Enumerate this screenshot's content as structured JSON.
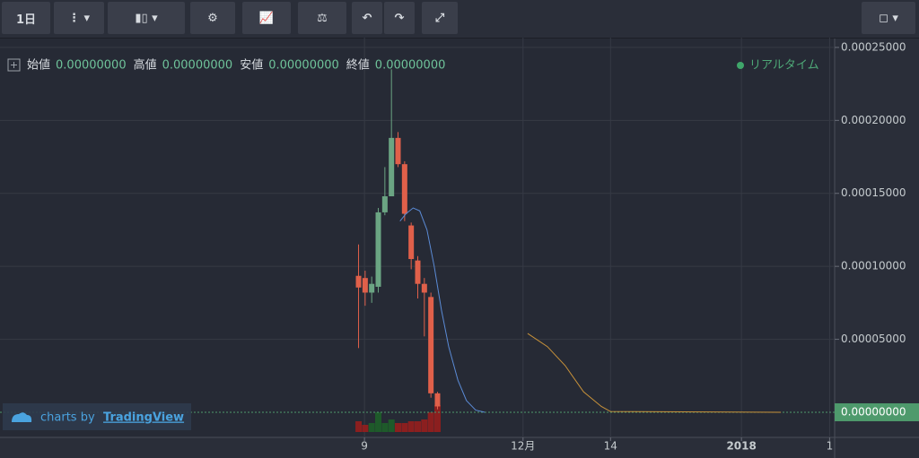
{
  "toolbar": {
    "interval": "1日"
  },
  "legend": {
    "items": [
      {
        "label": "始値",
        "value": "0.00000000"
      },
      {
        "label": "高値",
        "value": "0.00000000"
      },
      {
        "label": "安値",
        "value": "0.00000000"
      },
      {
        "label": "終値",
        "value": "0.00000000"
      }
    ],
    "status": "リアルタイム"
  },
  "watermark": {
    "prefix": "charts by",
    "brand": "TradingView"
  },
  "chart_data": {
    "type": "candlestick",
    "x": [
      54.5,
      55.5,
      56.5,
      57.5,
      58.5,
      59.5,
      60.5,
      61.5,
      62.5,
      63.5,
      64.5,
      65.5,
      66.5
    ],
    "open": [
      9.35e-05,
      9.2e-05,
      8.2e-05,
      8.6e-05,
      0.000137,
      0.000148,
      0.000188,
      0.00017,
      0.000128,
      0.000104,
      8.8e-05,
      7.9e-05,
      1.3e-05
    ],
    "high": [
      0.000115,
      9.7e-05,
      9.3e-05,
      0.00014,
      0.000168,
      0.000235,
      0.000192,
      0.000172,
      0.00013,
      0.000107,
      9.2e-05,
      8.2e-05,
      1.4e-05
    ],
    "low": [
      4.4e-05,
      7.3e-05,
      7.5e-05,
      8.2e-05,
      0.000135,
      0.000148,
      0.000168,
      0.000131,
      9.8e-05,
      7.8e-05,
      5.2e-05,
      1e-05,
      2e-06
    ],
    "close": [
      8.55e-05,
      8.2e-05,
      8.8e-05,
      0.000137,
      0.000148,
      0.000188,
      0.00017,
      0.000136,
      0.000105,
      8.8e-05,
      8.2e-05,
      1.3e-05,
      4e-06
    ],
    "up_color": "#6ba583",
    "down_color": "#e0604a",
    "volume": {
      "values": [
        12,
        8,
        10,
        22,
        10,
        14,
        10,
        10,
        12,
        12,
        14,
        22,
        30
      ],
      "up_color": "#1e5a2a",
      "down_color": "#8b1f1f"
    },
    "lines": [
      {
        "color": "#5b8bd6",
        "x": [
          60.8,
          61.7,
          62.8,
          63.8,
          64.9,
          66,
          67.1,
          68.2,
          69.6,
          70.9,
          72.3,
          73.7
        ],
        "values": [
          0.000131,
          0.000136,
          0.00014,
          0.000138,
          0.000125,
          0.0001,
          7e-05,
          4.5e-05,
          2.2e-05,
          8e-06,
          1.5e-06,
          0
        ]
      },
      {
        "color": "#c8923a",
        "x": [
          80.2,
          83.2,
          85.9,
          88.7,
          91.4,
          92.8,
          118.7
        ],
        "values": [
          5.4e-05,
          4.5e-05,
          3.2e-05,
          1.4e-05,
          4e-06,
          5e-07,
          0
        ]
      }
    ],
    "last_price": {
      "value": 0,
      "label": "0.00000000",
      "color": "#4e9a6c"
    },
    "xlim": [
      0,
      127
    ],
    "xticks": [
      {
        "value": 55.4,
        "label": "9"
      },
      {
        "value": 79.5,
        "label": "12月"
      },
      {
        "value": 92.8,
        "label": "14"
      },
      {
        "value": 112.7,
        "label": "2018"
      },
      {
        "value": 126.1,
        "label": "1"
      }
    ],
    "ylim": [
      -1.72e-05,
      0.0002567
    ],
    "yticks": [
      {
        "value": 5e-05,
        "label": "0.00005000"
      },
      {
        "value": 0.0001,
        "label": "0.00010000"
      },
      {
        "value": 0.00015,
        "label": "0.00015000"
      },
      {
        "value": 0.0002,
        "label": "0.00020000"
      },
      {
        "value": 0.00025,
        "label": "0.00025000"
      }
    ],
    "grid": true
  }
}
